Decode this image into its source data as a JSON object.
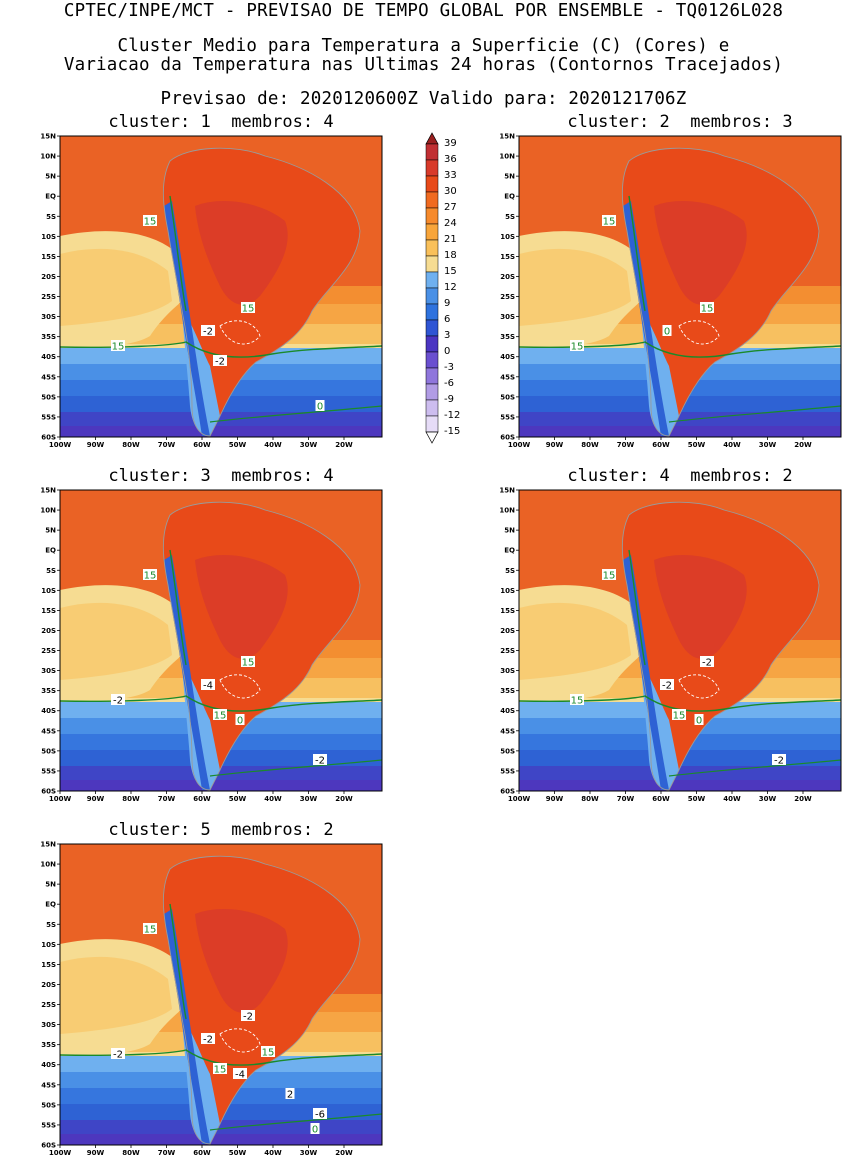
{
  "header": {
    "line1": "CPTEC/INPE/MCT - PREVISAO DE TEMPO GLOBAL POR ENSEMBLE - TQ0126L028",
    "line2": "Cluster Medio para Temperatura a Superficie (C) (Cores) e",
    "line3": "Variacao da Temperatura nas Ultimas 24 horas (Contornos Tracejados)",
    "line4": "Previsao de: 2020120600Z   Valido para: 2020121706Z"
  },
  "lat_ticks": [
    "15N",
    "10N",
    "5N",
    "EQ",
    "5S",
    "10S",
    "15S",
    "20S",
    "25S",
    "30S",
    "35S",
    "40S",
    "45S",
    "50S",
    "55S",
    "60S"
  ],
  "lon_ticks": [
    "100W",
    "90W",
    "80W",
    "70W",
    "60W",
    "50W",
    "40W",
    "30W",
    "20W"
  ],
  "colorbar": {
    "labels": [
      "39",
      "36",
      "33",
      "30",
      "27",
      "24",
      "21",
      "18",
      "15",
      "12",
      "9",
      "6",
      "3",
      "0",
      "-3",
      "-6",
      "-9",
      "-12",
      "-15"
    ],
    "colors": [
      "#fdfdfd",
      "#e6dcf7",
      "#cdbdef",
      "#b19ce5",
      "#8f76dc",
      "#6a4fd0",
      "#4b35c2",
      "#2f55d4",
      "#2e72de",
      "#4a90e6",
      "#6fb0ef",
      "#f6dc92",
      "#f9c05a",
      "#f8a53a",
      "#f68a2c",
      "#f06a20",
      "#e84a19",
      "#d83a2a",
      "#c12f33",
      "#9a1f1f"
    ]
  },
  "panels": [
    {
      "cluster": "cluster: 1",
      "members": "membros: 4",
      "labels": [
        {
          "t": "15",
          "c": "#1a8a2a"
        },
        {
          "t": "15",
          "c": "#1a8a2a"
        },
        {
          "t": "15",
          "c": "#1a8a2a"
        },
        {
          "t": "-2",
          "c": "#000"
        },
        {
          "t": "-2",
          "c": "#000"
        },
        {
          "t": "0",
          "c": "#1a8a2a"
        }
      ]
    },
    {
      "cluster": "cluster: 2",
      "members": "membros: 3",
      "labels": [
        {
          "t": "15",
          "c": "#1a8a2a"
        },
        {
          "t": "15",
          "c": "#1a8a2a"
        },
        {
          "t": "15",
          "c": "#1a8a2a"
        },
        {
          "t": "0",
          "c": "#1a8a2a"
        }
      ]
    },
    {
      "cluster": "cluster: 3",
      "members": "membros: 4",
      "labels": [
        {
          "t": "15",
          "c": "#1a8a2a"
        },
        {
          "t": "15",
          "c": "#1a8a2a"
        },
        {
          "t": "-2",
          "c": "#000"
        },
        {
          "t": "-4",
          "c": "#000"
        },
        {
          "t": "15",
          "c": "#1a8a2a"
        },
        {
          "t": "-2",
          "c": "#000"
        },
        {
          "t": "0",
          "c": "#1a8a2a"
        }
      ]
    },
    {
      "cluster": "cluster: 4",
      "members": "membros: 2",
      "labels": [
        {
          "t": "15",
          "c": "#1a8a2a"
        },
        {
          "t": "-2",
          "c": "#000"
        },
        {
          "t": "15",
          "c": "#1a8a2a"
        },
        {
          "t": "-2",
          "c": "#000"
        },
        {
          "t": "15",
          "c": "#1a8a2a"
        },
        {
          "t": "-2",
          "c": "#000"
        },
        {
          "t": "0",
          "c": "#1a8a2a"
        }
      ]
    },
    {
      "cluster": "cluster: 5",
      "members": "membros: 2",
      "labels": [
        {
          "t": "15",
          "c": "#1a8a2a"
        },
        {
          "t": "-2",
          "c": "#000"
        },
        {
          "t": "-2",
          "c": "#000"
        },
        {
          "t": "-2",
          "c": "#000"
        },
        {
          "t": "15",
          "c": "#1a8a2a"
        },
        {
          "t": "-6",
          "c": "#000"
        },
        {
          "t": "-4",
          "c": "#000"
        },
        {
          "t": "15",
          "c": "#1a8a2a"
        },
        {
          "t": "2",
          "c": "#000"
        },
        {
          "t": "0",
          "c": "#1a8a2a"
        }
      ]
    }
  ]
}
